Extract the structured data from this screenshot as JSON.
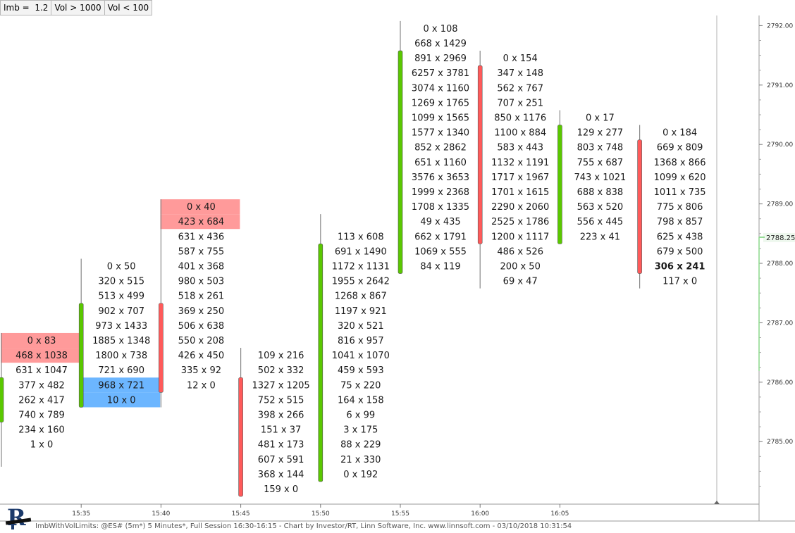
{
  "toolbar": {
    "buttons": [
      "Imb =  1.2",
      "Vol > 1000",
      "Vol < 100"
    ]
  },
  "colors": {
    "up": "#5ac800",
    "down": "#ff5a5a",
    "wick": "#888888",
    "imbalance_ask": "#ff9a9a",
    "imbalance_bid": "#6cb6ff",
    "price_marker": "#8cd98c"
  },
  "price_axis": {
    "ticks": [
      "2792.00",
      "2791.00",
      "2790.00",
      "2789.00",
      "2788.00",
      "2787.00",
      "2786.00",
      "2785.00"
    ],
    "current_price": "2788.25"
  },
  "time_axis": {
    "ticks": [
      "15:35",
      "15:40",
      "15:45",
      "15:50",
      "15:55",
      "16:00",
      "16:05"
    ]
  },
  "footer": "ImbWithVolLimits: @ES# (5m*) 5 Minutes*, Full Session 16:30-16:15 - Chart by Investor/RT, Linn Software, Inc. www.linnsoft.com - 03/10/2018 10:31:54",
  "chart_data": {
    "type": "footprint",
    "tick_size": 0.25,
    "bars": [
      {
        "direction": "up",
        "high": 2786.75,
        "low": 2784.75,
        "open": 2785.5,
        "close": 2786.0,
        "rows": [
          {
            "price": 2786.75,
            "text": "0 x 83",
            "highlight": "ask"
          },
          {
            "price": 2786.5,
            "text": "468 x 1038",
            "highlight": "ask"
          },
          {
            "price": 2786.25,
            "text": "631 x 1047"
          },
          {
            "price": 2786.0,
            "text": "377 x 482"
          },
          {
            "price": 2785.75,
            "text": "262 x 417"
          },
          {
            "price": 2785.5,
            "text": "740 x 789"
          },
          {
            "price": 2785.25,
            "text": "234 x 160"
          },
          {
            "price": 2785.0,
            "text": "1 x 0"
          }
        ]
      },
      {
        "direction": "up",
        "high": 2788.0,
        "low": 2785.75,
        "open": 2785.75,
        "close": 2787.25,
        "rows": [
          {
            "price": 2788.0,
            "text": "0 x 50"
          },
          {
            "price": 2787.75,
            "text": "320 x 515"
          },
          {
            "price": 2787.5,
            "text": "513 x 499"
          },
          {
            "price": 2787.25,
            "text": "902 x 707"
          },
          {
            "price": 2787.0,
            "text": "973 x 1433"
          },
          {
            "price": 2786.75,
            "text": "1885 x 1348"
          },
          {
            "price": 2786.5,
            "text": "1800 x 738"
          },
          {
            "price": 2786.25,
            "text": "721 x 690"
          },
          {
            "price": 2786.0,
            "text": "968 x 721",
            "highlight": "bid"
          },
          {
            "price": 2785.75,
            "text": "10 x 0",
            "highlight": "bid"
          }
        ]
      },
      {
        "direction": "down",
        "high": 2789.0,
        "low": 2785.75,
        "open": 2787.25,
        "close": 2786.0,
        "rows": [
          {
            "price": 2789.0,
            "text": "0 x 40",
            "highlight": "ask"
          },
          {
            "price": 2788.75,
            "text": "423 x 684",
            "highlight": "ask"
          },
          {
            "price": 2788.5,
            "text": "631 x 436"
          },
          {
            "price": 2788.25,
            "text": "587 x 755"
          },
          {
            "price": 2788.0,
            "text": "401 x 368"
          },
          {
            "price": 2787.75,
            "text": "980 x 503"
          },
          {
            "price": 2787.5,
            "text": "518 x 261"
          },
          {
            "price": 2787.25,
            "text": "369 x 250"
          },
          {
            "price": 2787.0,
            "text": "506 x 638"
          },
          {
            "price": 2786.75,
            "text": "550 x 208"
          },
          {
            "price": 2786.5,
            "text": "426 x 450"
          },
          {
            "price": 2786.25,
            "text": "335 x 92"
          },
          {
            "price": 2786.0,
            "text": "12 x 0"
          }
        ]
      },
      {
        "direction": "down",
        "high": 2786.5,
        "low": 2784.25,
        "open": 2786.0,
        "close": 2784.25,
        "rows": [
          {
            "price": 2786.5,
            "text": "109 x 216"
          },
          {
            "price": 2786.25,
            "text": "502 x 332"
          },
          {
            "price": 2786.0,
            "text": "1327 x 1205"
          },
          {
            "price": 2785.75,
            "text": "752 x 515"
          },
          {
            "price": 2785.5,
            "text": "398 x 266"
          },
          {
            "price": 2785.25,
            "text": "151 x 37"
          },
          {
            "price": 2785.0,
            "text": "481 x 173"
          },
          {
            "price": 2784.75,
            "text": "607 x 591"
          },
          {
            "price": 2784.5,
            "text": "368 x 144"
          },
          {
            "price": 2784.25,
            "text": "159 x 0"
          }
        ]
      },
      {
        "direction": "up",
        "high": 2788.75,
        "low": 2784.5,
        "open": 2784.5,
        "close": 2788.25,
        "rows": [
          {
            "price": 2788.5,
            "text": "113 x 608"
          },
          {
            "price": 2788.25,
            "text": "691 x 1490"
          },
          {
            "price": 2788.0,
            "text": "1172 x 1131"
          },
          {
            "price": 2787.75,
            "text": "1955 x 2642"
          },
          {
            "price": 2787.5,
            "text": "1268 x 867"
          },
          {
            "price": 2787.25,
            "text": "1197 x 921"
          },
          {
            "price": 2787.0,
            "text": "320 x 521"
          },
          {
            "price": 2786.75,
            "text": "816 x 957"
          },
          {
            "price": 2786.5,
            "text": "1041 x 1070"
          },
          {
            "price": 2786.25,
            "text": "459 x 593"
          },
          {
            "price": 2786.0,
            "text": "75 x 220"
          },
          {
            "price": 2785.75,
            "text": "164 x 158"
          },
          {
            "price": 2785.5,
            "text": "6 x 99"
          },
          {
            "price": 2785.25,
            "text": "3 x 175"
          },
          {
            "price": 2785.0,
            "text": "88 x 229"
          },
          {
            "price": 2784.75,
            "text": "21 x 330"
          },
          {
            "price": 2784.5,
            "text": "0 x 192"
          }
        ]
      },
      {
        "direction": "up",
        "high": 2792.0,
        "low": 2788.0,
        "open": 2788.0,
        "close": 2791.5,
        "rows": [
          {
            "price": 2792.0,
            "text": "0 x 108"
          },
          {
            "price": 2791.75,
            "text": "668 x 1429"
          },
          {
            "price": 2791.5,
            "text": "891 x 2969"
          },
          {
            "price": 2791.25,
            "text": "6257 x 3781"
          },
          {
            "price": 2791.0,
            "text": "3074 x 1160"
          },
          {
            "price": 2790.75,
            "text": "1269 x 1765"
          },
          {
            "price": 2790.5,
            "text": "1099 x 1565"
          },
          {
            "price": 2790.25,
            "text": "1577 x 1340"
          },
          {
            "price": 2790.0,
            "text": "852 x 2862"
          },
          {
            "price": 2789.75,
            "text": "651 x 1160"
          },
          {
            "price": 2789.5,
            "text": "3576 x 3653"
          },
          {
            "price": 2789.25,
            "text": "1999 x 2368"
          },
          {
            "price": 2789.0,
            "text": "1708 x 1335"
          },
          {
            "price": 2788.75,
            "text": "49 x 435"
          },
          {
            "price": 2788.5,
            "text": "662 x 1791"
          },
          {
            "price": 2788.25,
            "text": "1069 x 555"
          },
          {
            "price": 2788.0,
            "text": "84 x 119"
          }
        ]
      },
      {
        "direction": "down",
        "high": 2791.5,
        "low": 2787.75,
        "open": 2791.25,
        "close": 2788.5,
        "rows": [
          {
            "price": 2791.5,
            "text": "0 x 154"
          },
          {
            "price": 2791.25,
            "text": "347 x 148"
          },
          {
            "price": 2791.0,
            "text": "562 x 767"
          },
          {
            "price": 2790.75,
            "text": "707 x 251"
          },
          {
            "price": 2790.5,
            "text": "850 x 1176"
          },
          {
            "price": 2790.25,
            "text": "1100 x 884"
          },
          {
            "price": 2790.0,
            "text": "583 x 443"
          },
          {
            "price": 2789.75,
            "text": "1132 x 1191"
          },
          {
            "price": 2789.5,
            "text": "1717 x 1967"
          },
          {
            "price": 2789.25,
            "text": "1701 x 1615"
          },
          {
            "price": 2789.0,
            "text": "2290 x 2060"
          },
          {
            "price": 2788.75,
            "text": "2525 x 1786"
          },
          {
            "price": 2788.5,
            "text": "1200 x 1117"
          },
          {
            "price": 2788.25,
            "text": "486 x 526"
          },
          {
            "price": 2788.0,
            "text": "200 x 50"
          },
          {
            "price": 2787.75,
            "text": "69 x 47"
          }
        ]
      },
      {
        "direction": "up",
        "high": 2790.5,
        "low": 2788.5,
        "open": 2788.5,
        "close": 2790.25,
        "rows": [
          {
            "price": 2790.5,
            "text": "0 x 17"
          },
          {
            "price": 2790.25,
            "text": "129 x 277"
          },
          {
            "price": 2790.0,
            "text": "803 x 748"
          },
          {
            "price": 2789.75,
            "text": "755 x 687"
          },
          {
            "price": 2789.5,
            "text": "743 x 1021"
          },
          {
            "price": 2789.25,
            "text": "688 x 838"
          },
          {
            "price": 2789.0,
            "text": "563 x 520"
          },
          {
            "price": 2788.75,
            "text": "556 x 445"
          },
          {
            "price": 2788.5,
            "text": "223 x 41"
          }
        ]
      },
      {
        "direction": "down",
        "high": 2790.25,
        "low": 2787.75,
        "open": 2790.0,
        "close": 2788.0,
        "rows": [
          {
            "price": 2790.25,
            "text": "0 x 184"
          },
          {
            "price": 2790.0,
            "text": "669 x 809"
          },
          {
            "price": 2789.75,
            "text": "1368 x 866"
          },
          {
            "price": 2789.5,
            "text": "1099 x 620"
          },
          {
            "price": 2789.25,
            "text": "1011 x 735"
          },
          {
            "price": 2789.0,
            "text": "775 x 806"
          },
          {
            "price": 2788.75,
            "text": "798 x 857"
          },
          {
            "price": 2788.5,
            "text": "625 x 438"
          },
          {
            "price": 2788.25,
            "text": "679 x 500"
          },
          {
            "price": 2788.0,
            "text": "306 x 241",
            "bold": true
          },
          {
            "price": 2787.75,
            "text": "117 x 0"
          }
        ]
      }
    ]
  }
}
